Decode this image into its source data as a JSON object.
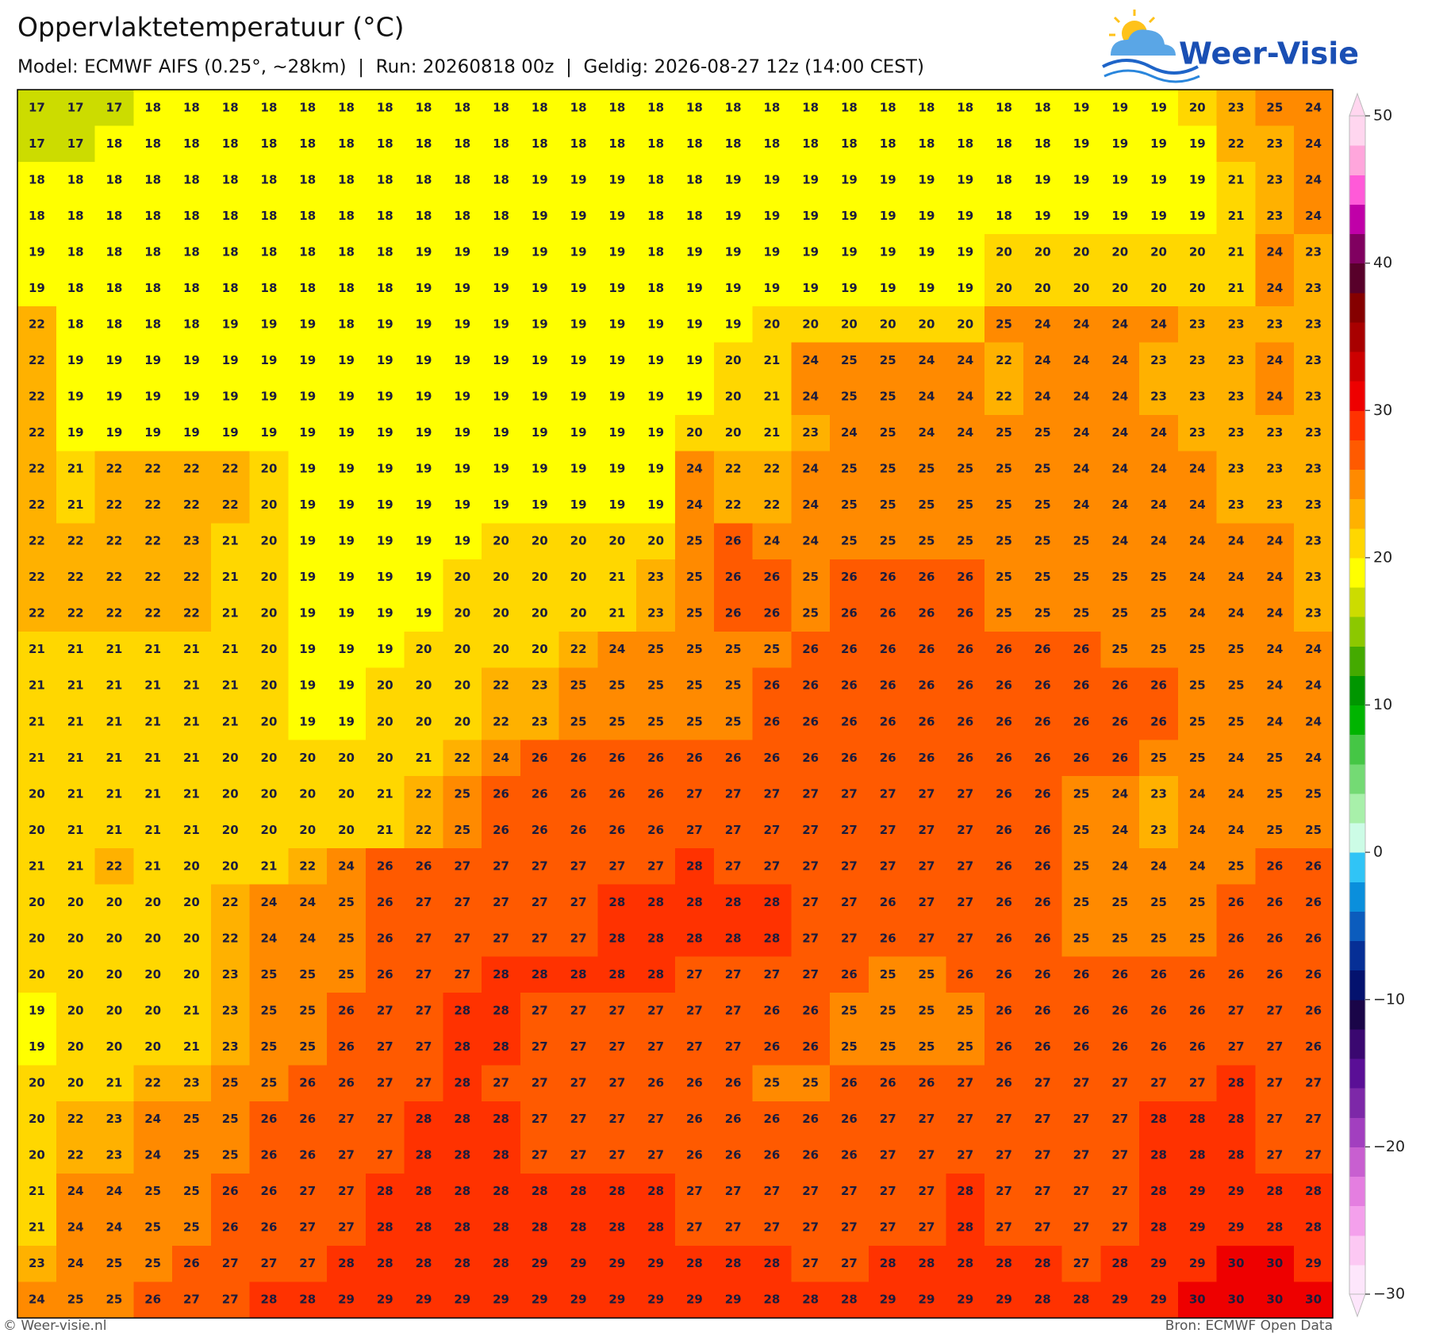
{
  "header": {
    "title": "Oppervlaktetemperatuur (°C)",
    "subtitle": "Model: ECMWF AIFS (0.25°, ~28km)  |  Run: 20260818 00z  |  Geldig: 2026-08-27 12z (14:00 CEST)",
    "logo": "Weer-Visie"
  },
  "map": {
    "grid": [
      [
        17,
        17,
        17,
        18,
        18,
        18,
        18,
        18,
        18,
        18,
        18,
        18,
        18,
        18,
        18,
        18,
        18,
        18,
        18,
        18,
        18,
        18,
        18,
        18,
        18,
        18,
        18,
        19,
        19,
        19,
        20,
        23,
        25,
        24
      ],
      [
        17,
        17,
        18,
        18,
        18,
        18,
        18,
        18,
        18,
        18,
        18,
        18,
        18,
        18,
        18,
        18,
        18,
        18,
        18,
        18,
        18,
        18,
        18,
        18,
        18,
        18,
        18,
        19,
        19,
        19,
        19,
        22,
        23,
        24
      ],
      [
        18,
        18,
        18,
        18,
        18,
        18,
        18,
        18,
        18,
        18,
        18,
        18,
        18,
        19,
        19,
        19,
        18,
        18,
        19,
        19,
        19,
        19,
        19,
        19,
        19,
        18,
        19,
        19,
        19,
        19,
        19,
        21,
        23,
        24
      ],
      [
        18,
        18,
        18,
        18,
        18,
        18,
        18,
        18,
        18,
        18,
        18,
        18,
        18,
        19,
        19,
        19,
        18,
        18,
        19,
        19,
        19,
        19,
        19,
        19,
        19,
        18,
        19,
        19,
        19,
        19,
        19,
        21,
        23,
        24
      ],
      [
        19,
        18,
        18,
        18,
        18,
        18,
        18,
        18,
        18,
        18,
        19,
        19,
        19,
        19,
        19,
        19,
        18,
        19,
        19,
        19,
        19,
        19,
        19,
        19,
        19,
        20,
        20,
        20,
        20,
        20,
        20,
        21,
        24,
        23
      ],
      [
        19,
        18,
        18,
        18,
        18,
        18,
        18,
        18,
        18,
        18,
        19,
        19,
        19,
        19,
        19,
        19,
        18,
        19,
        19,
        19,
        19,
        19,
        19,
        19,
        19,
        20,
        20,
        20,
        20,
        20,
        20,
        21,
        24,
        23
      ],
      [
        22,
        18,
        18,
        18,
        18,
        19,
        19,
        19,
        18,
        19,
        19,
        19,
        19,
        19,
        19,
        19,
        19,
        19,
        19,
        20,
        20,
        20,
        20,
        20,
        20,
        25,
        24,
        24,
        24,
        24,
        23,
        23,
        23,
        23
      ],
      [
        22,
        19,
        19,
        19,
        19,
        19,
        19,
        19,
        19,
        19,
        19,
        19,
        19,
        19,
        19,
        19,
        19,
        19,
        20,
        21,
        24,
        25,
        25,
        24,
        24,
        22,
        24,
        24,
        24,
        23,
        23,
        23,
        24,
        23
      ],
      [
        22,
        19,
        19,
        19,
        19,
        19,
        19,
        19,
        19,
        19,
        19,
        19,
        19,
        19,
        19,
        19,
        19,
        19,
        20,
        21,
        24,
        25,
        25,
        24,
        24,
        22,
        24,
        24,
        24,
        23,
        23,
        23,
        24,
        23
      ],
      [
        22,
        19,
        19,
        19,
        19,
        19,
        19,
        19,
        19,
        19,
        19,
        19,
        19,
        19,
        19,
        19,
        19,
        20,
        20,
        21,
        23,
        24,
        25,
        24,
        24,
        25,
        25,
        24,
        24,
        24,
        23,
        23,
        23,
        23
      ],
      [
        22,
        21,
        22,
        22,
        22,
        22,
        20,
        19,
        19,
        19,
        19,
        19,
        19,
        19,
        19,
        19,
        19,
        24,
        22,
        22,
        24,
        25,
        25,
        25,
        25,
        25,
        25,
        24,
        24,
        24,
        24,
        23,
        23,
        23
      ],
      [
        22,
        21,
        22,
        22,
        22,
        22,
        20,
        19,
        19,
        19,
        19,
        19,
        19,
        19,
        19,
        19,
        19,
        24,
        22,
        22,
        24,
        25,
        25,
        25,
        25,
        25,
        25,
        24,
        24,
        24,
        24,
        23,
        23,
        23
      ],
      [
        22,
        22,
        22,
        22,
        23,
        21,
        20,
        19,
        19,
        19,
        19,
        19,
        20,
        20,
        20,
        20,
        20,
        25,
        26,
        24,
        24,
        25,
        25,
        25,
        25,
        25,
        25,
        25,
        24,
        24,
        24,
        24,
        24,
        23
      ],
      [
        22,
        22,
        22,
        22,
        22,
        21,
        20,
        19,
        19,
        19,
        19,
        20,
        20,
        20,
        20,
        21,
        23,
        25,
        26,
        26,
        25,
        26,
        26,
        26,
        26,
        25,
        25,
        25,
        25,
        25,
        24,
        24,
        24,
        23
      ],
      [
        22,
        22,
        22,
        22,
        22,
        21,
        20,
        19,
        19,
        19,
        19,
        20,
        20,
        20,
        20,
        21,
        23,
        25,
        26,
        26,
        25,
        26,
        26,
        26,
        26,
        25,
        25,
        25,
        25,
        25,
        24,
        24,
        24,
        23
      ],
      [
        21,
        21,
        21,
        21,
        21,
        21,
        20,
        19,
        19,
        19,
        20,
        20,
        20,
        20,
        22,
        24,
        25,
        25,
        25,
        25,
        26,
        26,
        26,
        26,
        26,
        26,
        26,
        26,
        25,
        25,
        25,
        25,
        24,
        24
      ],
      [
        21,
        21,
        21,
        21,
        21,
        21,
        20,
        19,
        19,
        20,
        20,
        20,
        22,
        23,
        25,
        25,
        25,
        25,
        25,
        26,
        26,
        26,
        26,
        26,
        26,
        26,
        26,
        26,
        26,
        26,
        25,
        25,
        24,
        24
      ],
      [
        21,
        21,
        21,
        21,
        21,
        21,
        20,
        19,
        19,
        20,
        20,
        20,
        22,
        23,
        25,
        25,
        25,
        25,
        25,
        26,
        26,
        26,
        26,
        26,
        26,
        26,
        26,
        26,
        26,
        26,
        25,
        25,
        24,
        24
      ],
      [
        21,
        21,
        21,
        21,
        21,
        20,
        20,
        20,
        20,
        20,
        21,
        22,
        24,
        26,
        26,
        26,
        26,
        26,
        26,
        26,
        26,
        26,
        26,
        26,
        26,
        26,
        26,
        26,
        26,
        25,
        25,
        24,
        25,
        24
      ],
      [
        20,
        21,
        21,
        21,
        21,
        20,
        20,
        20,
        20,
        21,
        22,
        25,
        26,
        26,
        26,
        26,
        26,
        27,
        27,
        27,
        27,
        27,
        27,
        27,
        27,
        26,
        26,
        25,
        24,
        23,
        24,
        24,
        25,
        25
      ],
      [
        20,
        21,
        21,
        21,
        21,
        20,
        20,
        20,
        20,
        21,
        22,
        25,
        26,
        26,
        26,
        26,
        26,
        27,
        27,
        27,
        27,
        27,
        27,
        27,
        27,
        26,
        26,
        25,
        24,
        23,
        24,
        24,
        25,
        25
      ],
      [
        21,
        21,
        22,
        21,
        20,
        20,
        21,
        22,
        24,
        26,
        26,
        27,
        27,
        27,
        27,
        27,
        27,
        28,
        27,
        27,
        27,
        27,
        27,
        27,
        27,
        26,
        26,
        25,
        24,
        24,
        24,
        25,
        26,
        26
      ],
      [
        20,
        20,
        20,
        20,
        20,
        22,
        24,
        24,
        25,
        26,
        27,
        27,
        27,
        27,
        27,
        28,
        28,
        28,
        28,
        28,
        27,
        27,
        26,
        27,
        27,
        26,
        26,
        25,
        25,
        25,
        25,
        26,
        26,
        26
      ],
      [
        20,
        20,
        20,
        20,
        20,
        22,
        24,
        24,
        25,
        26,
        27,
        27,
        27,
        27,
        27,
        28,
        28,
        28,
        28,
        28,
        27,
        27,
        26,
        27,
        27,
        26,
        26,
        25,
        25,
        25,
        25,
        26,
        26,
        26
      ],
      [
        20,
        20,
        20,
        20,
        20,
        23,
        25,
        25,
        25,
        26,
        27,
        27,
        28,
        28,
        28,
        28,
        28,
        27,
        27,
        27,
        27,
        26,
        25,
        25,
        26,
        26,
        26,
        26,
        26,
        26,
        26,
        26,
        26,
        26
      ],
      [
        19,
        20,
        20,
        20,
        21,
        23,
        25,
        25,
        26,
        27,
        27,
        28,
        28,
        27,
        27,
        27,
        27,
        27,
        27,
        26,
        26,
        25,
        25,
        25,
        25,
        26,
        26,
        26,
        26,
        26,
        26,
        27,
        27,
        26
      ],
      [
        19,
        20,
        20,
        20,
        21,
        23,
        25,
        25,
        26,
        27,
        27,
        28,
        28,
        27,
        27,
        27,
        27,
        27,
        27,
        26,
        26,
        25,
        25,
        25,
        25,
        26,
        26,
        26,
        26,
        26,
        26,
        27,
        27,
        26
      ],
      [
        20,
        20,
        21,
        22,
        23,
        25,
        25,
        26,
        26,
        27,
        27,
        28,
        27,
        27,
        27,
        27,
        26,
        26,
        26,
        25,
        25,
        26,
        26,
        26,
        27,
        26,
        27,
        27,
        27,
        27,
        27,
        28,
        27,
        27
      ],
      [
        20,
        22,
        23,
        24,
        25,
        25,
        26,
        26,
        27,
        27,
        28,
        28,
        28,
        27,
        27,
        27,
        27,
        26,
        26,
        26,
        26,
        26,
        27,
        27,
        27,
        27,
        27,
        27,
        27,
        28,
        28,
        28,
        27,
        27
      ],
      [
        20,
        22,
        23,
        24,
        25,
        25,
        26,
        26,
        27,
        27,
        28,
        28,
        28,
        27,
        27,
        27,
        27,
        26,
        26,
        26,
        26,
        26,
        27,
        27,
        27,
        27,
        27,
        27,
        27,
        28,
        28,
        28,
        27,
        27
      ],
      [
        21,
        24,
        24,
        25,
        25,
        26,
        26,
        27,
        27,
        28,
        28,
        28,
        28,
        28,
        28,
        28,
        28,
        27,
        27,
        27,
        27,
        27,
        27,
        27,
        28,
        27,
        27,
        27,
        27,
        28,
        29,
        29,
        28,
        28
      ],
      [
        21,
        24,
        24,
        25,
        25,
        26,
        26,
        27,
        27,
        28,
        28,
        28,
        28,
        28,
        28,
        28,
        28,
        27,
        27,
        27,
        27,
        27,
        27,
        27,
        28,
        27,
        27,
        27,
        27,
        28,
        29,
        29,
        28,
        28
      ],
      [
        23,
        24,
        25,
        25,
        26,
        27,
        27,
        27,
        28,
        28,
        28,
        28,
        28,
        29,
        29,
        29,
        29,
        28,
        28,
        28,
        27,
        27,
        28,
        28,
        28,
        28,
        28,
        27,
        28,
        29,
        29,
        30,
        30,
        29
      ],
      [
        24,
        25,
        25,
        26,
        27,
        27,
        28,
        28,
        29,
        29,
        29,
        29,
        29,
        29,
        29,
        29,
        29,
        29,
        29,
        28,
        28,
        28,
        29,
        29,
        29,
        29,
        28,
        28,
        29,
        29,
        30,
        30,
        30,
        30
      ]
    ],
    "colorbar": {
      "levels": [
        -30,
        -28,
        -26,
        -24,
        -22,
        -20,
        -18,
        -16,
        -14,
        -12,
        -10,
        -8,
        -6,
        -4,
        -2,
        0,
        2,
        4,
        6,
        8,
        10,
        12,
        14,
        16,
        18,
        20,
        22,
        24,
        26,
        28,
        30,
        32,
        34,
        36,
        38,
        40,
        42,
        44,
        46,
        48,
        50
      ],
      "colors": [
        "#fde6fb",
        "#fcc8f3",
        "#f4a0ec",
        "#e47ee0",
        "#c85fd0",
        "#a23fbf",
        "#7d28a8",
        "#5a0f96",
        "#3a0870",
        "#1a0548",
        "#04126e",
        "#062f96",
        "#0b5cbd",
        "#0a8fdc",
        "#30c4f6",
        "#ccfce6",
        "#a8f0aa",
        "#74da74",
        "#45c645",
        "#00b400",
        "#009600",
        "#44aa00",
        "#8cc800",
        "#ccdc00",
        "#ffff00",
        "#ffd700",
        "#ffb100",
        "#ff8a00",
        "#ff5a00",
        "#ff3200",
        "#ee0000",
        "#cc0000",
        "#a80000",
        "#850000",
        "#58002a",
        "#800060",
        "#c000a8",
        "#ff5ad8",
        "#ffa6dc",
        "#ffd6ef"
      ],
      "ticks": [
        {
          "value": -30,
          "label": "−30"
        },
        {
          "value": -20,
          "label": "−20"
        },
        {
          "value": -10,
          "label": "−10"
        },
        0,
        10,
        20,
        30,
        40,
        50
      ]
    }
  },
  "footer": {
    "left": "© Weer-visie.nl",
    "right": "Bron: ECMWF Open Data"
  }
}
